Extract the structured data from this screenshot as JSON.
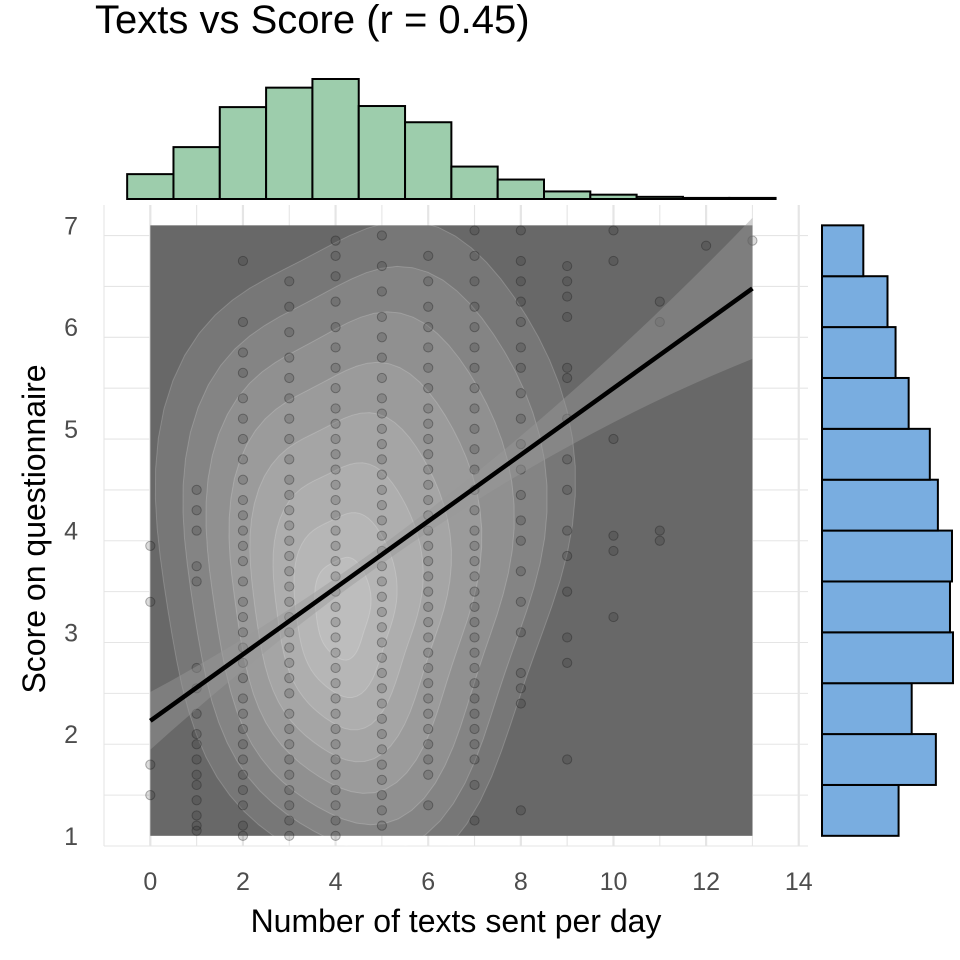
{
  "chart_data": {
    "type": "scatter",
    "title": "Texts vs Score (r = 0.45)",
    "xlabel": "Number of texts sent per day",
    "ylabel": "Score on questionnaire",
    "xlim": [
      -1,
      14.2
    ],
    "ylim": [
      0.9,
      7.2
    ],
    "x_ticks": [
      0,
      2,
      4,
      6,
      8,
      10,
      12,
      14
    ],
    "y_ticks": [
      1,
      2,
      3,
      4,
      5,
      6,
      7
    ],
    "grid": true,
    "regression_line": {
      "x": [
        0,
        13
      ],
      "y": [
        2.13,
        6.38
      ]
    },
    "density_region": {
      "x": [
        0,
        13
      ],
      "y": [
        1,
        7
      ]
    },
    "points_by_x": [
      {
        "x": 0,
        "y": [
          1.4,
          1.7,
          3.3,
          3.85
        ]
      },
      {
        "x": 1,
        "y": [
          1.05,
          1.1,
          1.2,
          1.35,
          1.5,
          1.6,
          1.75,
          1.9,
          2.0,
          2.2,
          2.45,
          2.65,
          3.5,
          3.65,
          4.0,
          4.2,
          4.4
        ]
      },
      {
        "x": 2,
        "y": [
          1.0,
          1.1,
          1.3,
          1.45,
          1.6,
          1.75,
          1.9,
          2.05,
          2.2,
          2.35,
          2.55,
          2.7,
          2.85,
          3.0,
          3.15,
          3.3,
          3.5,
          3.7,
          3.85,
          4.0,
          4.15,
          4.3,
          4.5,
          4.7,
          4.9,
          5.1,
          5.3,
          5.55,
          5.75,
          6.05,
          6.65
        ]
      },
      {
        "x": 3,
        "y": [
          1.0,
          1.15,
          1.3,
          1.45,
          1.6,
          1.75,
          1.9,
          2.05,
          2.2,
          2.4,
          2.55,
          2.7,
          2.85,
          3.0,
          3.15,
          3.3,
          3.45,
          3.6,
          3.75,
          3.9,
          4.05,
          4.2,
          4.35,
          4.5,
          4.7,
          4.9,
          5.1,
          5.3,
          5.5,
          5.7,
          5.95,
          6.2,
          6.45
        ]
      },
      {
        "x": 4,
        "y": [
          1.0,
          1.15,
          1.3,
          1.45,
          1.6,
          1.75,
          1.9,
          2.05,
          2.2,
          2.35,
          2.5,
          2.65,
          2.8,
          2.95,
          3.1,
          3.25,
          3.4,
          3.55,
          3.7,
          3.85,
          4.0,
          4.15,
          4.3,
          4.45,
          4.6,
          4.75,
          4.9,
          5.05,
          5.2,
          5.4,
          5.6,
          5.8,
          6.0,
          6.25,
          6.5,
          6.7,
          6.85
        ]
      },
      {
        "x": 5,
        "y": [
          1.1,
          1.25,
          1.4,
          1.55,
          1.7,
          1.85,
          2.0,
          2.15,
          2.3,
          2.45,
          2.6,
          2.75,
          2.9,
          3.05,
          3.2,
          3.35,
          3.5,
          3.65,
          3.8,
          3.95,
          4.1,
          4.25,
          4.4,
          4.55,
          4.7,
          4.85,
          5.0,
          5.15,
          5.3,
          5.5,
          5.7,
          5.9,
          6.1,
          6.35,
          6.6,
          6.9
        ]
      },
      {
        "x": 6,
        "y": [
          1.3,
          1.6,
          1.75,
          1.9,
          2.05,
          2.2,
          2.35,
          2.5,
          2.65,
          2.8,
          2.95,
          3.1,
          3.25,
          3.4,
          3.55,
          3.7,
          3.85,
          4.0,
          4.15,
          4.3,
          4.45,
          4.6,
          4.75,
          4.9,
          5.05,
          5.2,
          5.4,
          5.6,
          5.8,
          6.0,
          6.2,
          6.45,
          6.7
        ]
      },
      {
        "x": 7,
        "y": [
          1.15,
          1.5,
          1.75,
          1.9,
          2.05,
          2.2,
          2.35,
          2.5,
          2.65,
          2.8,
          2.95,
          3.1,
          3.25,
          3.4,
          3.55,
          3.7,
          3.85,
          4.0,
          4.2,
          4.4,
          4.6,
          4.8,
          5.0,
          5.2,
          5.4,
          5.6,
          5.8,
          6.0,
          6.2,
          6.45,
          6.7,
          6.95
        ]
      },
      {
        "x": 8,
        "y": [
          1.25,
          2.3,
          2.45,
          2.6,
          3.0,
          3.3,
          3.6,
          3.9,
          4.1,
          4.35,
          4.6,
          4.85,
          5.1,
          5.35,
          5.6,
          5.8,
          6.05,
          6.25,
          6.45,
          6.65,
          6.95
        ]
      },
      {
        "x": 9,
        "y": [
          1.75,
          2.7,
          2.95,
          3.4,
          3.75,
          4.0,
          4.4,
          4.7,
          5.1,
          5.5,
          5.6,
          6.1,
          6.3,
          6.45,
          6.6
        ]
      },
      {
        "x": 10,
        "y": [
          3.15,
          3.8,
          3.95,
          4.9,
          6.65,
          6.95
        ]
      },
      {
        "x": 11,
        "y": [
          3.9,
          4.0,
          6.05,
          6.25
        ]
      },
      {
        "x": 12,
        "y": [
          6.8
        ]
      },
      {
        "x": 13,
        "y": [
          6.85
        ]
      }
    ],
    "histogram_x": {
      "bin_width": 1,
      "bin_centers": [
        0,
        1,
        2,
        3,
        4,
        5,
        6,
        7,
        8,
        9,
        10,
        11,
        12,
        13
      ],
      "heights": [
        23,
        48,
        85,
        103,
        111,
        86,
        71,
        30,
        18,
        7,
        4,
        2,
        1,
        1
      ],
      "fill": "#9dcdac"
    },
    "histogram_y": {
      "bin_width": 0.5,
      "bin_centers": [
        1.25,
        1.75,
        2.25,
        2.75,
        3.25,
        3.75,
        4.25,
        4.75,
        5.25,
        5.75,
        6.25,
        6.75
      ],
      "heights": [
        76,
        113,
        89,
        130,
        127,
        129,
        115,
        107,
        86,
        73,
        65,
        41
      ],
      "fill": "#79ade0"
    },
    "colors": {
      "density_base": "#686868",
      "points": "#1a1a1a",
      "line": "#000000",
      "grid": "#e5e5e5"
    }
  }
}
